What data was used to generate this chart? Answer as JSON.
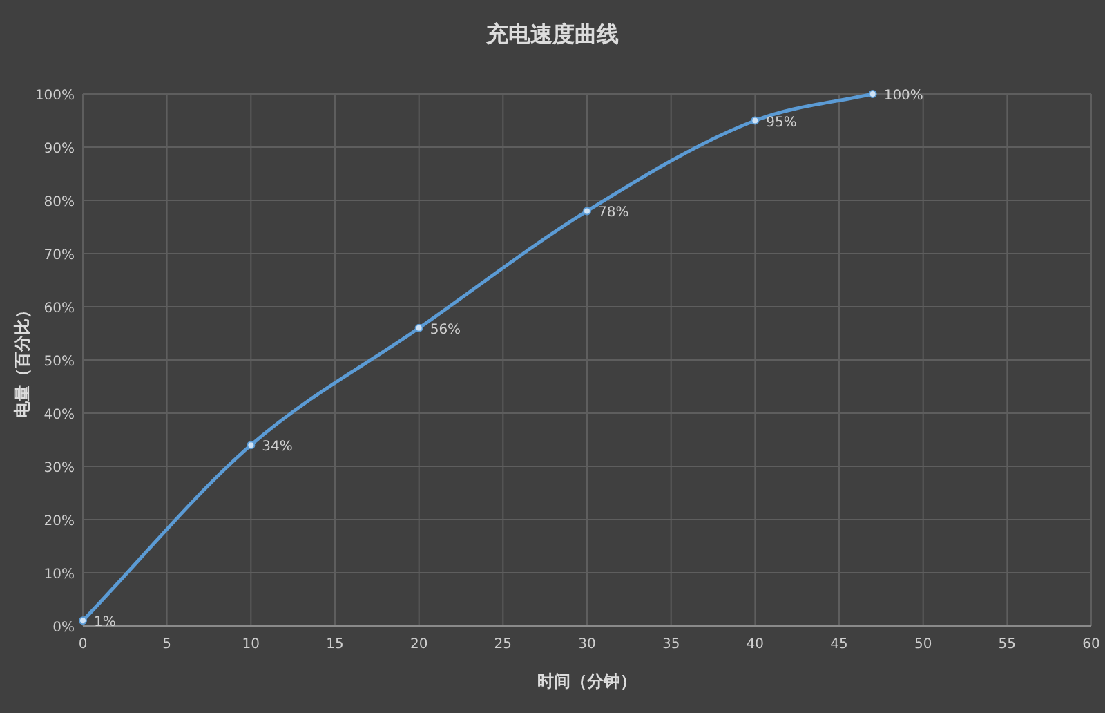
{
  "chart_data": {
    "type": "line",
    "title": "充电速度曲线",
    "xlabel": "时间（分钟）",
    "ylabel": "电量（百分比）",
    "x": [
      0,
      10,
      20,
      30,
      40,
      47
    ],
    "series": [
      {
        "color": "#5b9bd5",
        "values": [
          1,
          34,
          56,
          78,
          95,
          100
        ],
        "value_labels": [
          "1%",
          "34%",
          "56%",
          "78%",
          "95%",
          "100%"
        ]
      }
    ],
    "xlim": [
      0,
      60
    ],
    "xticks": [
      0,
      5,
      10,
      15,
      20,
      25,
      30,
      35,
      40,
      45,
      50,
      55,
      60
    ],
    "ylim": [
      0,
      100
    ],
    "yticks": [
      {
        "value": 0,
        "label": "0%"
      },
      {
        "value": 10,
        "label": "10%"
      },
      {
        "value": 20,
        "label": "20%"
      },
      {
        "value": 30,
        "label": "30%"
      },
      {
        "value": 40,
        "label": "40%"
      },
      {
        "value": 50,
        "label": "50%"
      },
      {
        "value": 60,
        "label": "60%"
      },
      {
        "value": 70,
        "label": "70%"
      },
      {
        "value": 80,
        "label": "80%"
      },
      {
        "value": 90,
        "label": "90%"
      },
      {
        "value": 100,
        "label": "100%"
      }
    ],
    "grid": true,
    "marker": "circle"
  }
}
